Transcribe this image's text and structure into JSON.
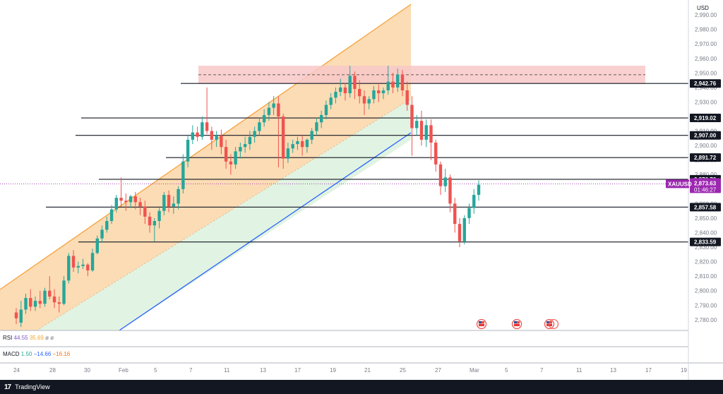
{
  "chart_data": {
    "type": "candlestick",
    "symbol": "XAUUSD",
    "currency": "USD",
    "last_price": "2,873.63",
    "countdown": "01:46:27",
    "ylim": [
      2775,
      2997
    ],
    "yticks": [
      "2,990.00",
      "2,980.00",
      "2,970.00",
      "2,960.00",
      "2,950.00",
      "2,940.00",
      "2,930.00",
      "2,920.00",
      "2,910.00",
      "2,900.00",
      "2,890.00",
      "2,880.00",
      "2,870.00",
      "2,860.00",
      "2,850.00",
      "2,840.00",
      "2,830.00",
      "2,820.00",
      "2,810.00",
      "2,800.00",
      "2,790.00",
      "2,780.00"
    ],
    "xticks": [
      "24",
      "28",
      "30",
      "Feb",
      "5",
      "7",
      "11",
      "13",
      "17",
      "19",
      "21",
      "25",
      "27",
      "Mar",
      "5",
      "7",
      "11",
      "13",
      "17",
      "19"
    ],
    "levels": [
      {
        "label": "2,942.76",
        "value": 2942.76
      },
      {
        "label": "2,919.02",
        "value": 2919.02
      },
      {
        "label": "2,907.00",
        "value": 2907.0
      },
      {
        "label": "2,891.72",
        "value": 2891.72
      },
      {
        "label": "2,876.76",
        "value": 2876.76
      },
      {
        "label": "2,857.58",
        "value": 2857.58
      },
      {
        "label": "2,833.59",
        "value": 2833.59
      }
    ],
    "resistance_zone": [
      2942.5,
      2955
    ],
    "candles": [
      [
        2785,
        2788,
        2781,
        2777
      ],
      [
        2778,
        2793,
        2787,
        2775
      ],
      [
        2787,
        2798,
        2795,
        2784
      ],
      [
        2795,
        2801,
        2789,
        2786
      ],
      [
        2789,
        2796,
        2793,
        2786
      ],
      [
        2793,
        2800,
        2791,
        2788
      ],
      [
        2791,
        2802,
        2800,
        2789
      ],
      [
        2800,
        2810,
        2796,
        2794
      ],
      [
        2796,
        2801,
        2792,
        2788
      ],
      [
        2792,
        2796,
        2791,
        2785
      ],
      [
        2791,
        2810,
        2807,
        2790
      ],
      [
        2807,
        2826,
        2824,
        2805
      ],
      [
        2824,
        2828,
        2816,
        2813
      ],
      [
        2816,
        2820,
        2817,
        2812
      ],
      [
        2817,
        2822,
        2818,
        2815
      ],
      [
        2818,
        2819,
        2814,
        2810
      ],
      [
        2814,
        2829,
        2826,
        2813
      ],
      [
        2826,
        2838,
        2836,
        2825
      ],
      [
        2836,
        2845,
        2842,
        2833
      ],
      [
        2842,
        2851,
        2848,
        2840
      ],
      [
        2848,
        2859,
        2856,
        2846
      ],
      [
        2856,
        2866,
        2864,
        2854
      ],
      [
        2864,
        2878,
        2862,
        2858
      ],
      [
        2862,
        2867,
        2861,
        2855
      ],
      [
        2861,
        2866,
        2865,
        2857
      ],
      [
        2865,
        2868,
        2861,
        2856
      ],
      [
        2861,
        2864,
        2858,
        2852
      ],
      [
        2858,
        2862,
        2851,
        2846
      ],
      [
        2851,
        2854,
        2845,
        2840
      ],
      [
        2845,
        2850,
        2848,
        2834
      ],
      [
        2848,
        2857,
        2855,
        2843
      ],
      [
        2855,
        2868,
        2866,
        2852
      ],
      [
        2866,
        2869,
        2858,
        2854
      ],
      [
        2858,
        2865,
        2860,
        2853
      ],
      [
        2860,
        2872,
        2870,
        2856
      ],
      [
        2870,
        2894,
        2889,
        2867
      ],
      [
        2889,
        2907,
        2904,
        2885
      ],
      [
        2904,
        2914,
        2909,
        2901
      ],
      [
        2909,
        2913,
        2906,
        2903
      ],
      [
        2906,
        2920,
        2916,
        2904
      ],
      [
        2916,
        2940,
        2910,
        2908
      ],
      [
        2910,
        2913,
        2904,
        2897
      ],
      [
        2904,
        2910,
        2907,
        2899
      ],
      [
        2907,
        2911,
        2899,
        2894
      ],
      [
        2899,
        2904,
        2889,
        2884
      ],
      [
        2889,
        2894,
        2887,
        2880
      ],
      [
        2887,
        2899,
        2896,
        2884
      ],
      [
        2896,
        2902,
        2899,
        2891
      ],
      [
        2899,
        2906,
        2901,
        2895
      ],
      [
        2901,
        2910,
        2906,
        2897
      ],
      [
        2906,
        2913,
        2910,
        2902
      ],
      [
        2910,
        2919,
        2916,
        2907
      ],
      [
        2916,
        2925,
        2921,
        2913
      ],
      [
        2921,
        2930,
        2926,
        2917
      ],
      [
        2926,
        2934,
        2929,
        2921
      ],
      [
        2929,
        2934,
        2920,
        2885
      ],
      [
        2920,
        2922,
        2891,
        2884
      ],
      [
        2891,
        2902,
        2898,
        2888
      ],
      [
        2898,
        2904,
        2901,
        2895
      ],
      [
        2901,
        2906,
        2903,
        2897
      ],
      [
        2903,
        2907,
        2899,
        2893
      ],
      [
        2899,
        2905,
        2904,
        2895
      ],
      [
        2904,
        2912,
        2910,
        2901
      ],
      [
        2910,
        2919,
        2916,
        2907
      ],
      [
        2916,
        2924,
        2921,
        2912
      ],
      [
        2921,
        2931,
        2928,
        2918
      ],
      [
        2928,
        2936,
        2933,
        2925
      ],
      [
        2933,
        2940,
        2937,
        2929
      ],
      [
        2937,
        2946,
        2940,
        2934
      ],
      [
        2940,
        2943,
        2936,
        2931
      ],
      [
        2936,
        2955,
        2948,
        2933
      ],
      [
        2948,
        2951,
        2939,
        2932
      ],
      [
        2939,
        2945,
        2934,
        2929
      ],
      [
        2934,
        2938,
        2929,
        2921
      ],
      [
        2929,
        2934,
        2932,
        2925
      ],
      [
        2932,
        2941,
        2938,
        2929
      ],
      [
        2938,
        2942,
        2936,
        2930
      ],
      [
        2936,
        2940,
        2938,
        2932
      ],
      [
        2938,
        2955,
        2944,
        2935
      ],
      [
        2944,
        2950,
        2940,
        2936
      ],
      [
        2940,
        2953,
        2949,
        2937
      ],
      [
        2949,
        2952,
        2938,
        2934
      ],
      [
        2938,
        2944,
        2928,
        2924
      ],
      [
        2928,
        2934,
        2912,
        2893
      ],
      [
        2912,
        2921,
        2917,
        2907
      ],
      [
        2917,
        2924,
        2904,
        2900
      ],
      [
        2904,
        2918,
        2914,
        2899
      ],
      [
        2914,
        2918,
        2902,
        2890
      ],
      [
        2902,
        2904,
        2887,
        2882
      ],
      [
        2887,
        2889,
        2872,
        2866
      ],
      [
        2872,
        2884,
        2878,
        2868
      ],
      [
        2878,
        2880,
        2860,
        2854
      ],
      [
        2860,
        2864,
        2846,
        2840
      ],
      [
        2846,
        2850,
        2834,
        2830
      ],
      [
        2834,
        2852,
        2850,
        2832
      ],
      [
        2850,
        2860,
        2857,
        2846
      ],
      [
        2857,
        2870,
        2866,
        2853
      ],
      [
        2866,
        2876,
        2873,
        2862
      ]
    ]
  },
  "axis": {
    "currency_label": "USD"
  },
  "events": [
    {
      "icon": "us-flag-icon"
    },
    {
      "icon": "us-flag-icon"
    },
    {
      "icon": "us-flag-icon"
    }
  ],
  "indicators": {
    "rsi": {
      "name": "RSI",
      "v1": "44.55",
      "v2": "35.69",
      "v3": "ø",
      "v4": "ø"
    },
    "macd": {
      "name": "MACD",
      "v1": "1.50",
      "v2": "−14.66",
      "v3": "−16.16"
    }
  },
  "footer": {
    "logo_glyph": "17",
    "brand": "TradingView"
  },
  "colors": {
    "bull": "#26a69a",
    "bear": "#ef5350",
    "channel_orange": "#f7a23b",
    "channel_blue": "#2962ff",
    "zone_red": "#f8c8c8",
    "price_purple": "#9c27b0"
  }
}
